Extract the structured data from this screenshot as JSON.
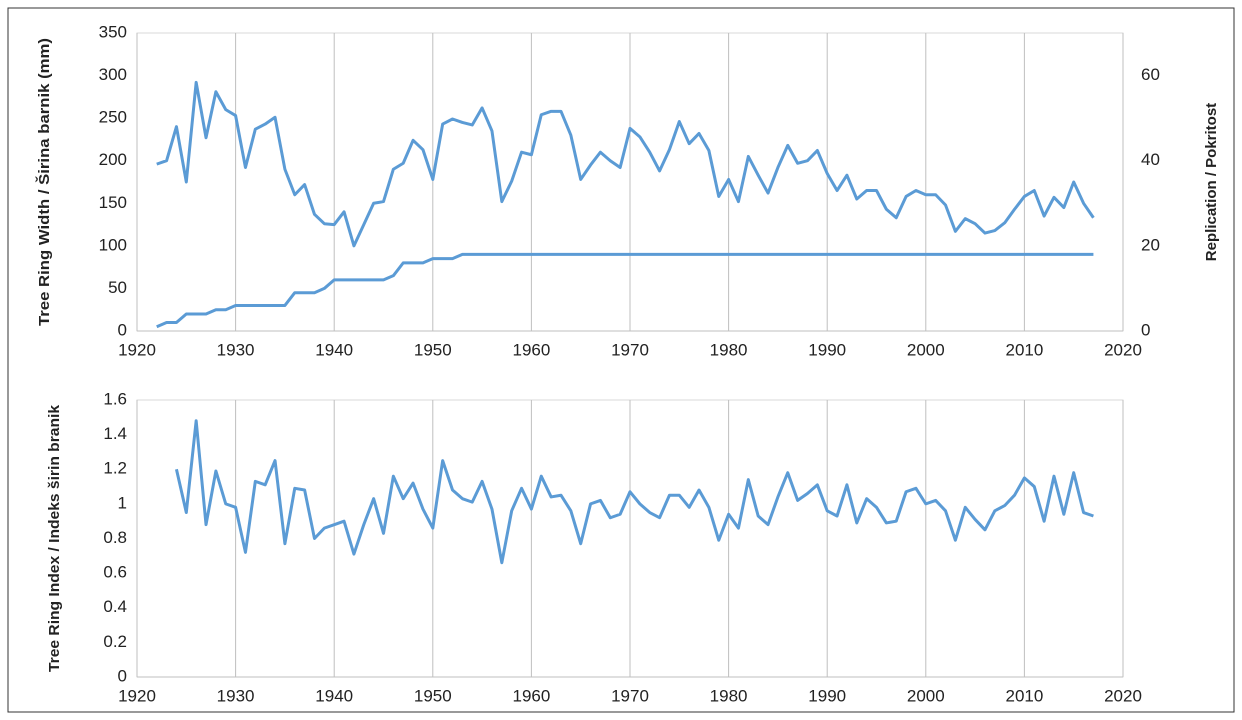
{
  "chart_data": [
    {
      "type": "line",
      "y_label": "Tree Ring Width / Širina barnik (mm)",
      "y2_label": "Replication / Pokritost",
      "x": [
        1922,
        1923,
        1924,
        1925,
        1926,
        1927,
        1928,
        1929,
        1930,
        1931,
        1932,
        1933,
        1934,
        1935,
        1936,
        1937,
        1938,
        1939,
        1940,
        1941,
        1942,
        1943,
        1944,
        1945,
        1946,
        1947,
        1948,
        1949,
        1950,
        1951,
        1952,
        1953,
        1954,
        1955,
        1956,
        1957,
        1958,
        1959,
        1960,
        1961,
        1962,
        1963,
        1964,
        1965,
        1966,
        1967,
        1968,
        1969,
        1970,
        1971,
        1972,
        1973,
        1974,
        1975,
        1976,
        1977,
        1978,
        1979,
        1980,
        1981,
        1982,
        1983,
        1984,
        1985,
        1986,
        1987,
        1988,
        1989,
        1990,
        1991,
        1992,
        1993,
        1994,
        1995,
        1996,
        1997,
        1998,
        1999,
        2000,
        2001,
        2002,
        2003,
        2004,
        2005,
        2006,
        2007,
        2008,
        2009,
        2010,
        2011,
        2012,
        2013,
        2014,
        2015,
        2016,
        2017
      ],
      "series": [
        {
          "color": "#5b9bd5",
          "axis": "y",
          "values": [
            196,
            200,
            240,
            175,
            292,
            227,
            281,
            260,
            253,
            192,
            237,
            243,
            251,
            190,
            160,
            172,
            137,
            126,
            125,
            140,
            100,
            125,
            150,
            152,
            190,
            197,
            224,
            213,
            178,
            243,
            249,
            245,
            242,
            262,
            235,
            152,
            176,
            210,
            207,
            254,
            258,
            258,
            230,
            178,
            195,
            210,
            200,
            192,
            238,
            228,
            210,
            188,
            213,
            246,
            220,
            232,
            212,
            158,
            178,
            152,
            205,
            183,
            162,
            192,
            218,
            197,
            200,
            212,
            185,
            165,
            183,
            155,
            165,
            165,
            143,
            133,
            158,
            165,
            160,
            160,
            148,
            117,
            132,
            126,
            115,
            118,
            127,
            143,
            158,
            165,
            135,
            157,
            145,
            175,
            150,
            133
          ]
        },
        {
          "color": "#5b9bd5",
          "axis": "y2",
          "values": [
            1,
            2,
            2,
            4,
            4,
            4,
            5,
            5,
            6,
            6,
            6,
            6,
            6,
            6,
            9,
            9,
            9,
            10,
            12,
            12,
            12,
            12,
            12,
            12,
            13,
            16,
            16,
            16,
            17,
            17,
            17,
            18,
            18,
            18,
            18,
            18,
            18,
            18,
            18,
            18,
            18,
            18,
            18,
            18,
            18,
            18,
            18,
            18,
            18,
            18,
            18,
            18,
            18,
            18,
            18,
            18,
            18,
            18,
            18,
            18,
            18,
            18,
            18,
            18,
            18,
            18,
            18,
            18,
            18,
            18,
            18,
            18,
            18,
            18,
            18,
            18,
            18,
            18,
            18,
            18,
            18,
            18,
            18,
            18,
            18,
            18,
            18,
            18,
            18,
            18,
            18,
            18,
            18,
            18,
            18,
            18
          ]
        }
      ],
      "xlim": [
        1920,
        2020
      ],
      "xticks": [
        1920,
        1930,
        1940,
        1950,
        1960,
        1970,
        1980,
        1990,
        2000,
        2010,
        2020
      ],
      "ylim": [
        0,
        350
      ],
      "yticks": [
        0,
        50,
        100,
        150,
        200,
        250,
        300,
        350
      ],
      "y2lim": [
        0,
        70
      ],
      "y2ticks": [
        0,
        20,
        40,
        60
      ],
      "grid": "x"
    },
    {
      "type": "line",
      "y_label": "Tree Ring Index / Indeks širin branik",
      "x": [
        1924,
        1925,
        1926,
        1927,
        1928,
        1929,
        1930,
        1931,
        1932,
        1933,
        1934,
        1935,
        1936,
        1937,
        1938,
        1939,
        1940,
        1941,
        1942,
        1943,
        1944,
        1945,
        1946,
        1947,
        1948,
        1949,
        1950,
        1951,
        1952,
        1953,
        1954,
        1955,
        1956,
        1957,
        1958,
        1959,
        1960,
        1961,
        1962,
        1963,
        1964,
        1965,
        1966,
        1967,
        1968,
        1969,
        1970,
        1971,
        1972,
        1973,
        1974,
        1975,
        1976,
        1977,
        1978,
        1979,
        1980,
        1981,
        1982,
        1983,
        1984,
        1985,
        1986,
        1987,
        1988,
        1989,
        1990,
        1991,
        1992,
        1993,
        1994,
        1995,
        1996,
        1997,
        1998,
        1999,
        2000,
        2001,
        2002,
        2003,
        2004,
        2005,
        2006,
        2007,
        2008,
        2009,
        2010,
        2011,
        2012,
        2013,
        2014,
        2015,
        2016,
        2017
      ],
      "series": [
        {
          "color": "#5b9bd5",
          "axis": "y",
          "values": [
            1.2,
            0.95,
            1.48,
            0.88,
            1.19,
            1.0,
            0.98,
            0.72,
            1.13,
            1.11,
            1.25,
            0.77,
            1.09,
            1.08,
            0.8,
            0.86,
            0.88,
            0.9,
            0.71,
            0.88,
            1.03,
            0.83,
            1.16,
            1.03,
            1.12,
            0.97,
            0.86,
            1.25,
            1.08,
            1.03,
            1.01,
            1.13,
            0.97,
            0.66,
            0.96,
            1.09,
            0.97,
            1.16,
            1.04,
            1.05,
            0.96,
            0.77,
            1.0,
            1.02,
            0.92,
            0.94,
            1.07,
            1.0,
            0.95,
            0.92,
            1.05,
            1.05,
            0.98,
            1.08,
            0.98,
            0.79,
            0.94,
            0.86,
            1.14,
            0.93,
            0.88,
            1.04,
            1.18,
            1.02,
            1.06,
            1.11,
            0.96,
            0.93,
            1.11,
            0.89,
            1.03,
            0.98,
            0.89,
            0.9,
            1.07,
            1.09,
            1.0,
            1.02,
            0.96,
            0.79,
            0.98,
            0.91,
            0.85,
            0.96,
            0.99,
            1.05,
            1.15,
            1.1,
            0.9,
            1.16,
            0.94,
            1.18,
            0.95,
            0.93
          ]
        }
      ],
      "xlim": [
        1920,
        2020
      ],
      "xticks": [
        1920,
        1930,
        1940,
        1950,
        1960,
        1970,
        1980,
        1990,
        2000,
        2010,
        2020
      ],
      "ylim": [
        0,
        1.6
      ],
      "yticks": [
        0,
        0.2,
        0.4,
        0.6,
        0.8,
        1,
        1.2,
        1.4,
        1.6
      ],
      "grid": "x"
    }
  ]
}
